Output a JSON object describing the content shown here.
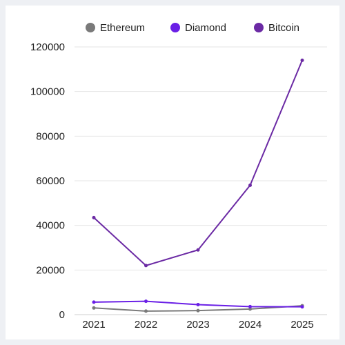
{
  "chart_data": {
    "type": "line",
    "title": "",
    "xlabel": "",
    "ylabel": "",
    "x": [
      "2021",
      "2022",
      "2023",
      "2024",
      "2025"
    ],
    "ylim": [
      0,
      120000
    ],
    "yticks": [
      0,
      20000,
      40000,
      60000,
      80000,
      100000,
      120000
    ],
    "grid": true,
    "legend_position": "top",
    "series": [
      {
        "name": "Ethereum",
        "color": "#7a7a7a",
        "values": [
          3000,
          1600,
          1800,
          2500,
          4000
        ]
      },
      {
        "name": "Diamond",
        "color": "#6a1fe6",
        "values": [
          5600,
          6000,
          4500,
          3600,
          3500
        ]
      },
      {
        "name": "Bitcoin",
        "color": "#6b2aa4",
        "values": [
          43500,
          22000,
          29000,
          58000,
          114000
        ]
      }
    ]
  }
}
